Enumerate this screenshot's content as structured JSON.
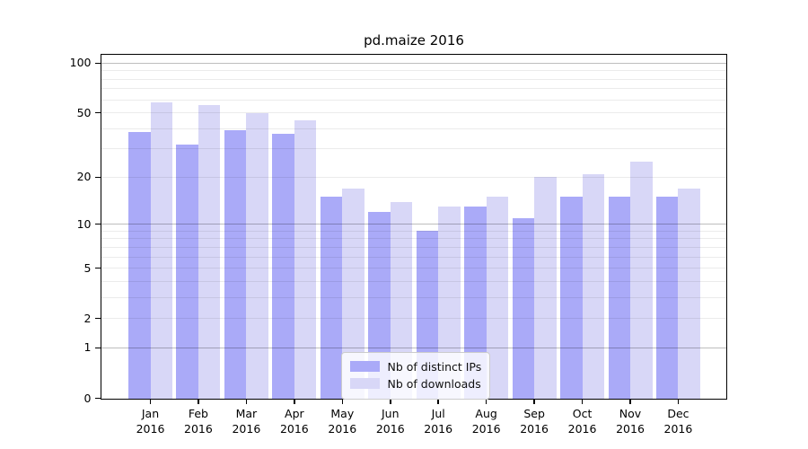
{
  "figure": {
    "title": "pd.maize 2016"
  },
  "chart_data": {
    "type": "bar",
    "title": "pd.maize 2016",
    "xlabel": "",
    "ylabel": "",
    "y_scale": "log1p",
    "ylim": [
      0,
      113
    ],
    "grid": true,
    "categories": [
      "Jan",
      "Feb",
      "Mar",
      "Apr",
      "May",
      "Jun",
      "Jul",
      "Aug",
      "Sep",
      "Oct",
      "Nov",
      "Dec"
    ],
    "x_tick_year": "2016",
    "series": [
      {
        "name": "Nb of distinct IPs",
        "color": "#aaaaf8",
        "values": [
          38,
          32,
          39,
          37,
          15,
          12,
          9,
          13,
          11,
          15,
          15,
          15
        ]
      },
      {
        "name": "Nb of downloads",
        "color": "#d8d7f7",
        "values": [
          58,
          56,
          50,
          45,
          17,
          14,
          13,
          15,
          20,
          21,
          25,
          17
        ]
      }
    ],
    "y_ticks": [
      100,
      50,
      20,
      10,
      5,
      2,
      1,
      0
    ],
    "major_gridlines": [
      1,
      10,
      100
    ],
    "minor_gridlines": [
      2,
      3,
      4,
      5,
      6,
      7,
      8,
      9,
      20,
      30,
      40,
      50,
      60,
      70,
      80,
      90
    ],
    "legend": {
      "position": "lower-center",
      "entries": [
        "Nb of distinct IPs",
        "Nb of downloads"
      ]
    }
  }
}
